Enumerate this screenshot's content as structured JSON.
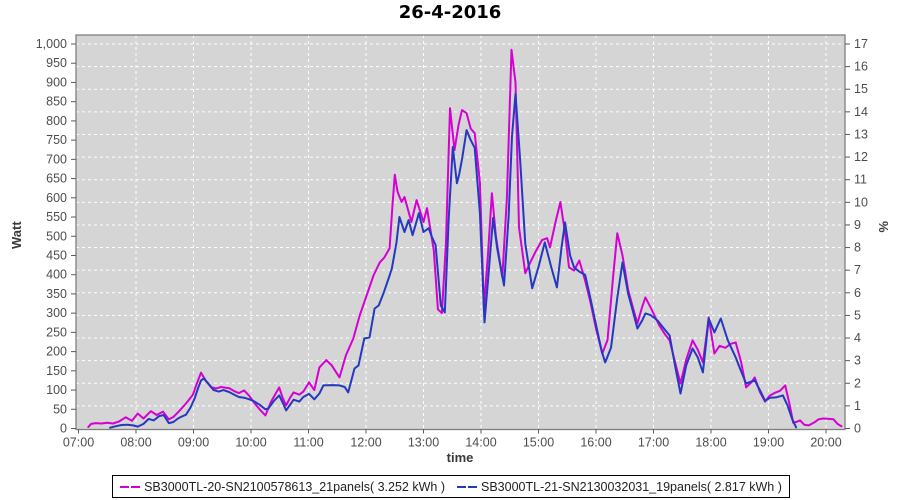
{
  "title": "26-4-2016",
  "chart_data": {
    "type": "line",
    "title": "26-4-2016",
    "xlabel": "time",
    "ylabel_left": "Watt",
    "ylabel_right": "%",
    "xlim_hours": [
      7,
      20
    ],
    "ylim_left": [
      0,
      1000
    ],
    "ylim_right": [
      0,
      17
    ],
    "x_tick_labels": [
      "07:00",
      "08:00",
      "09:00",
      "10:00",
      "11:00",
      "12:00",
      "13:00",
      "14:00",
      "15:00",
      "16:00",
      "17:00",
      "18:00",
      "19:00",
      "20:00"
    ],
    "y_left_tick_labels": [
      "0",
      "50",
      "100",
      "150",
      "200",
      "250",
      "300",
      "350",
      "400",
      "450",
      "500",
      "550",
      "600",
      "650",
      "700",
      "750",
      "800",
      "850",
      "900",
      "950",
      "1,000"
    ],
    "y_left_step": 50,
    "y_right_tick_labels": [
      "0",
      "1",
      "2",
      "3",
      "4",
      "5",
      "6",
      "7",
      "8",
      "9",
      "10",
      "11",
      "12",
      "13",
      "14",
      "15",
      "16",
      "17"
    ],
    "grid": {
      "horizontal": "every 1% (white dashed)",
      "vertical": "every hour (white dashed)"
    },
    "legend_position": "bottom-center",
    "colors": {
      "plot_bg": "#d5d5d5",
      "gridline": "#ffffff",
      "frame": "#7f7f7f",
      "tick": "#5a5a5a",
      "tick_text": "#4d4d4d",
      "series_a": "#d400d4",
      "series_b": "#2438c0"
    },
    "series": [
      {
        "name": "SB3000TL-20-SN2100578613_21panels",
        "legend_label": "SB3000TL-20-SN2100578613_21panels( 3.252 kWh )",
        "energy_kwh": 3.252,
        "color": "#d400d4",
        "points": [
          [
            7.17,
            4
          ],
          [
            7.22,
            12
          ],
          [
            7.3,
            14
          ],
          [
            7.4,
            13
          ],
          [
            7.5,
            15
          ],
          [
            7.6,
            13
          ],
          [
            7.7,
            18
          ],
          [
            7.82,
            29
          ],
          [
            7.93,
            20
          ],
          [
            8.03,
            39
          ],
          [
            8.13,
            26
          ],
          [
            8.26,
            45
          ],
          [
            8.36,
            35
          ],
          [
            8.47,
            44
          ],
          [
            8.57,
            24
          ],
          [
            8.65,
            30
          ],
          [
            8.75,
            45
          ],
          [
            8.87,
            65
          ],
          [
            8.99,
            88
          ],
          [
            9.06,
            118
          ],
          [
            9.13,
            145
          ],
          [
            9.21,
            125
          ],
          [
            9.3,
            108
          ],
          [
            9.39,
            104
          ],
          [
            9.48,
            108
          ],
          [
            9.56,
            106
          ],
          [
            9.62,
            105
          ],
          [
            9.71,
            97
          ],
          [
            9.79,
            92
          ],
          [
            9.88,
            99
          ],
          [
            9.97,
            85
          ],
          [
            10.05,
            68
          ],
          [
            10.15,
            50
          ],
          [
            10.25,
            34
          ],
          [
            10.35,
            70
          ],
          [
            10.49,
            107
          ],
          [
            10.55,
            80
          ],
          [
            10.61,
            60
          ],
          [
            10.68,
            80
          ],
          [
            10.74,
            94
          ],
          [
            10.84,
            88
          ],
          [
            10.91,
            96
          ],
          [
            11.01,
            120
          ],
          [
            11.1,
            100
          ],
          [
            11.19,
            159
          ],
          [
            11.31,
            178
          ],
          [
            11.4,
            165
          ],
          [
            11.54,
            133
          ],
          [
            11.65,
            190
          ],
          [
            11.78,
            234
          ],
          [
            11.89,
            294
          ],
          [
            12.01,
            346
          ],
          [
            12.13,
            398
          ],
          [
            12.24,
            432
          ],
          [
            12.32,
            445
          ],
          [
            12.41,
            469
          ],
          [
            12.46,
            581
          ],
          [
            12.5,
            660
          ],
          [
            12.55,
            615
          ],
          [
            12.62,
            589
          ],
          [
            12.67,
            602
          ],
          [
            12.79,
            537
          ],
          [
            12.88,
            594
          ],
          [
            13,
            537
          ],
          [
            13.06,
            573
          ],
          [
            13.18,
            463
          ],
          [
            13.25,
            310
          ],
          [
            13.32,
            300
          ],
          [
            13.39,
            480
          ],
          [
            13.46,
            833
          ],
          [
            13.54,
            724
          ],
          [
            13.61,
            790
          ],
          [
            13.67,
            828
          ],
          [
            13.75,
            820
          ],
          [
            13.82,
            780
          ],
          [
            13.89,
            768
          ],
          [
            13.98,
            640
          ],
          [
            14.05,
            315
          ],
          [
            14.12,
            450
          ],
          [
            14.19,
            612
          ],
          [
            14.26,
            500
          ],
          [
            14.37,
            393
          ],
          [
            14.45,
            600
          ],
          [
            14.53,
            985
          ],
          [
            14.6,
            900
          ],
          [
            14.66,
            523
          ],
          [
            14.77,
            404
          ],
          [
            14.85,
            430
          ],
          [
            14.95,
            460
          ],
          [
            15.06,
            490
          ],
          [
            15.15,
            495
          ],
          [
            15.2,
            471
          ],
          [
            15.3,
            540
          ],
          [
            15.38,
            589
          ],
          [
            15.47,
            500
          ],
          [
            15.53,
            419
          ],
          [
            15.62,
            411
          ],
          [
            15.71,
            437
          ],
          [
            15.81,
            385
          ],
          [
            15.9,
            330
          ],
          [
            16,
            260
          ],
          [
            16.11,
            195
          ],
          [
            16.2,
            230
          ],
          [
            16.3,
            400
          ],
          [
            16.37,
            508
          ],
          [
            16.46,
            450
          ],
          [
            16.56,
            360
          ],
          [
            16.65,
            310
          ],
          [
            16.72,
            273
          ],
          [
            16.8,
            315
          ],
          [
            16.86,
            341
          ],
          [
            16.95,
            315
          ],
          [
            17.03,
            290
          ],
          [
            17.1,
            268
          ],
          [
            17.2,
            245
          ],
          [
            17.28,
            229
          ],
          [
            17.38,
            170
          ],
          [
            17.47,
            117
          ],
          [
            17.57,
            180
          ],
          [
            17.68,
            229
          ],
          [
            17.77,
            205
          ],
          [
            17.86,
            172
          ],
          [
            17.92,
            240
          ],
          [
            17.96,
            289
          ],
          [
            18.06,
            195
          ],
          [
            18.15,
            215
          ],
          [
            18.25,
            210
          ],
          [
            18.34,
            220
          ],
          [
            18.43,
            224
          ],
          [
            18.52,
            175
          ],
          [
            18.61,
            107
          ],
          [
            18.7,
            120
          ],
          [
            18.76,
            133
          ],
          [
            18.85,
            95
          ],
          [
            18.94,
            70
          ],
          [
            19.02,
            85
          ],
          [
            19.1,
            92
          ],
          [
            19.2,
            98
          ],
          [
            19.29,
            112
          ],
          [
            19.37,
            60
          ],
          [
            19.43,
            15
          ],
          [
            19.5,
            18
          ],
          [
            19.55,
            21
          ],
          [
            19.62,
            10
          ],
          [
            19.7,
            8
          ],
          [
            19.8,
            16
          ],
          [
            19.87,
            24
          ],
          [
            19.95,
            26
          ],
          [
            20.05,
            25
          ],
          [
            20.13,
            24
          ],
          [
            20.2,
            12
          ],
          [
            20.27,
            6
          ]
        ]
      },
      {
        "name": "SB3000TL-21-SN2130032031_19panels",
        "legend_label": "SB3000TL-21-SN2130032031_19panels( 2.817 kWh )",
        "energy_kwh": 2.817,
        "color": "#2438c0",
        "points": [
          [
            7.55,
            2
          ],
          [
            7.65,
            6
          ],
          [
            7.75,
            9
          ],
          [
            7.85,
            10
          ],
          [
            7.95,
            8
          ],
          [
            8.03,
            5
          ],
          [
            8.13,
            12
          ],
          [
            8.22,
            25
          ],
          [
            8.31,
            21
          ],
          [
            8.4,
            32
          ],
          [
            8.48,
            35
          ],
          [
            8.57,
            14
          ],
          [
            8.65,
            17
          ],
          [
            8.73,
            26
          ],
          [
            8.78,
            30
          ],
          [
            8.87,
            36
          ],
          [
            8.95,
            55
          ],
          [
            9.02,
            78
          ],
          [
            9.08,
            105
          ],
          [
            9.13,
            125
          ],
          [
            9.18,
            130
          ],
          [
            9.27,
            115
          ],
          [
            9.35,
            100
          ],
          [
            9.44,
            96
          ],
          [
            9.52,
            100
          ],
          [
            9.62,
            95
          ],
          [
            9.71,
            88
          ],
          [
            9.79,
            82
          ],
          [
            9.88,
            80
          ],
          [
            9.97,
            76
          ],
          [
            10.05,
            71
          ],
          [
            10.15,
            62
          ],
          [
            10.25,
            50
          ],
          [
            10.3,
            52
          ],
          [
            10.4,
            72
          ],
          [
            10.49,
            86
          ],
          [
            10.55,
            68
          ],
          [
            10.61,
            47
          ],
          [
            10.68,
            62
          ],
          [
            10.74,
            75
          ],
          [
            10.84,
            70
          ],
          [
            10.91,
            82
          ],
          [
            11.01,
            90
          ],
          [
            11.1,
            76
          ],
          [
            11.19,
            91
          ],
          [
            11.26,
            112
          ],
          [
            11.4,
            113
          ],
          [
            11.54,
            112
          ],
          [
            11.63,
            108
          ],
          [
            11.69,
            94
          ],
          [
            11.8,
            156
          ],
          [
            11.87,
            164
          ],
          [
            11.97,
            234
          ],
          [
            12.06,
            237
          ],
          [
            12.15,
            312
          ],
          [
            12.22,
            320
          ],
          [
            12.31,
            354
          ],
          [
            12.41,
            398
          ],
          [
            12.45,
            417
          ],
          [
            12.53,
            484
          ],
          [
            12.58,
            550
          ],
          [
            12.67,
            511
          ],
          [
            12.74,
            542
          ],
          [
            12.81,
            503
          ],
          [
            12.92,
            560
          ],
          [
            13,
            511
          ],
          [
            13.09,
            521
          ],
          [
            13.14,
            500
          ],
          [
            13.21,
            477
          ],
          [
            13.3,
            320
          ],
          [
            13.37,
            302
          ],
          [
            13.44,
            550
          ],
          [
            13.51,
            732
          ],
          [
            13.58,
            638
          ],
          [
            13.62,
            660
          ],
          [
            13.67,
            700
          ],
          [
            13.75,
            776
          ],
          [
            13.82,
            750
          ],
          [
            13.89,
            730
          ],
          [
            13.98,
            560
          ],
          [
            14.06,
            276
          ],
          [
            14.13,
            400
          ],
          [
            14.21,
            548
          ],
          [
            14.28,
            470
          ],
          [
            14.4,
            372
          ],
          [
            14.48,
            550
          ],
          [
            14.54,
            760
          ],
          [
            14.6,
            870
          ],
          [
            14.68,
            700
          ],
          [
            14.77,
            480
          ],
          [
            14.89,
            365
          ],
          [
            15,
            420
          ],
          [
            15.11,
            484
          ],
          [
            15.22,
            420
          ],
          [
            15.32,
            367
          ],
          [
            15.4,
            470
          ],
          [
            15.46,
            536
          ],
          [
            15.55,
            450
          ],
          [
            15.62,
            419
          ],
          [
            15.71,
            408
          ],
          [
            15.81,
            400
          ],
          [
            15.9,
            340
          ],
          [
            16,
            270
          ],
          [
            16.1,
            200
          ],
          [
            16.16,
            172
          ],
          [
            16.26,
            210
          ],
          [
            16.37,
            340
          ],
          [
            16.46,
            432
          ],
          [
            16.56,
            350
          ],
          [
            16.65,
            300
          ],
          [
            16.72,
            260
          ],
          [
            16.8,
            280
          ],
          [
            16.86,
            299
          ],
          [
            16.95,
            295
          ],
          [
            17.07,
            281
          ],
          [
            17.18,
            260
          ],
          [
            17.28,
            242
          ],
          [
            17.38,
            160
          ],
          [
            17.47,
            91
          ],
          [
            17.57,
            165
          ],
          [
            17.68,
            208
          ],
          [
            17.77,
            185
          ],
          [
            17.86,
            146
          ],
          [
            17.92,
            230
          ],
          [
            17.96,
            286
          ],
          [
            18.06,
            250
          ],
          [
            18.17,
            286
          ],
          [
            18.29,
            230
          ],
          [
            18.43,
            185
          ],
          [
            18.52,
            150
          ],
          [
            18.61,
            117
          ],
          [
            18.7,
            122
          ],
          [
            18.76,
            125
          ],
          [
            18.85,
            100
          ],
          [
            18.94,
            72
          ],
          [
            19.03,
            80
          ],
          [
            19.13,
            81
          ],
          [
            19.25,
            86
          ],
          [
            19.33,
            60
          ],
          [
            19.41,
            25
          ],
          [
            19.48,
            3
          ]
        ]
      }
    ]
  }
}
